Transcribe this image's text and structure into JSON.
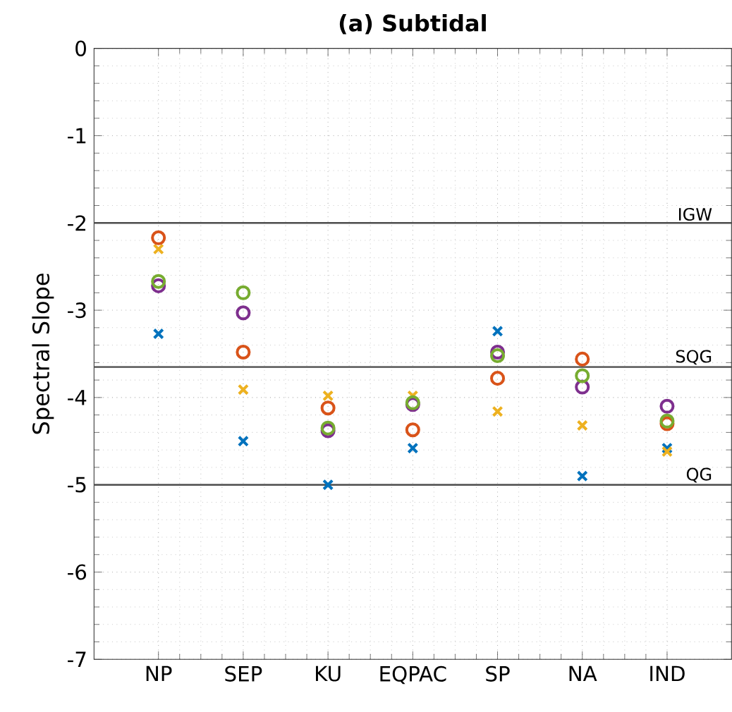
{
  "chart_data": {
    "type": "scatter",
    "title": "(a) Subtidal",
    "ylabel": "Spectral Slope",
    "categories": [
      "NP",
      "SEP",
      "KU",
      "EQPAC",
      "SP",
      "NA",
      "IND"
    ],
    "ylim": [
      -7,
      0
    ],
    "yticks": [
      -7,
      -6,
      -5,
      -4,
      -3,
      -2,
      -1,
      0
    ],
    "grid": true,
    "series": [
      {
        "color": "#0072bd",
        "marker": "cross",
        "values": [
          -3.27,
          -4.5,
          -5.0,
          -4.58,
          -3.24,
          -4.9,
          -4.58
        ]
      },
      {
        "color": "#edb120",
        "marker": "cross",
        "values": [
          -2.3,
          -3.91,
          -3.98,
          -3.98,
          -4.16,
          -4.32,
          -4.62
        ]
      },
      {
        "color": "#d95319",
        "marker": "circle",
        "values": [
          -2.17,
          -3.48,
          -4.12,
          -4.37,
          -3.78,
          -3.56,
          -4.3
        ]
      },
      {
        "color": "#7e2f8e",
        "marker": "circle",
        "values": [
          -2.72,
          -3.03,
          -4.38,
          -4.08,
          -3.48,
          -3.88,
          -4.1
        ]
      },
      {
        "color": "#77ac30",
        "marker": "circle",
        "values": [
          -2.67,
          -2.8,
          -4.35,
          -4.06,
          -3.52,
          -3.75,
          -4.27
        ]
      }
    ],
    "ref_lines": [
      {
        "axis": "y",
        "value": -2,
        "label": "IGW"
      },
      {
        "axis": "y",
        "value": -3.65,
        "label": "SQG"
      },
      {
        "axis": "y",
        "value": -5,
        "label": "QG"
      }
    ]
  }
}
